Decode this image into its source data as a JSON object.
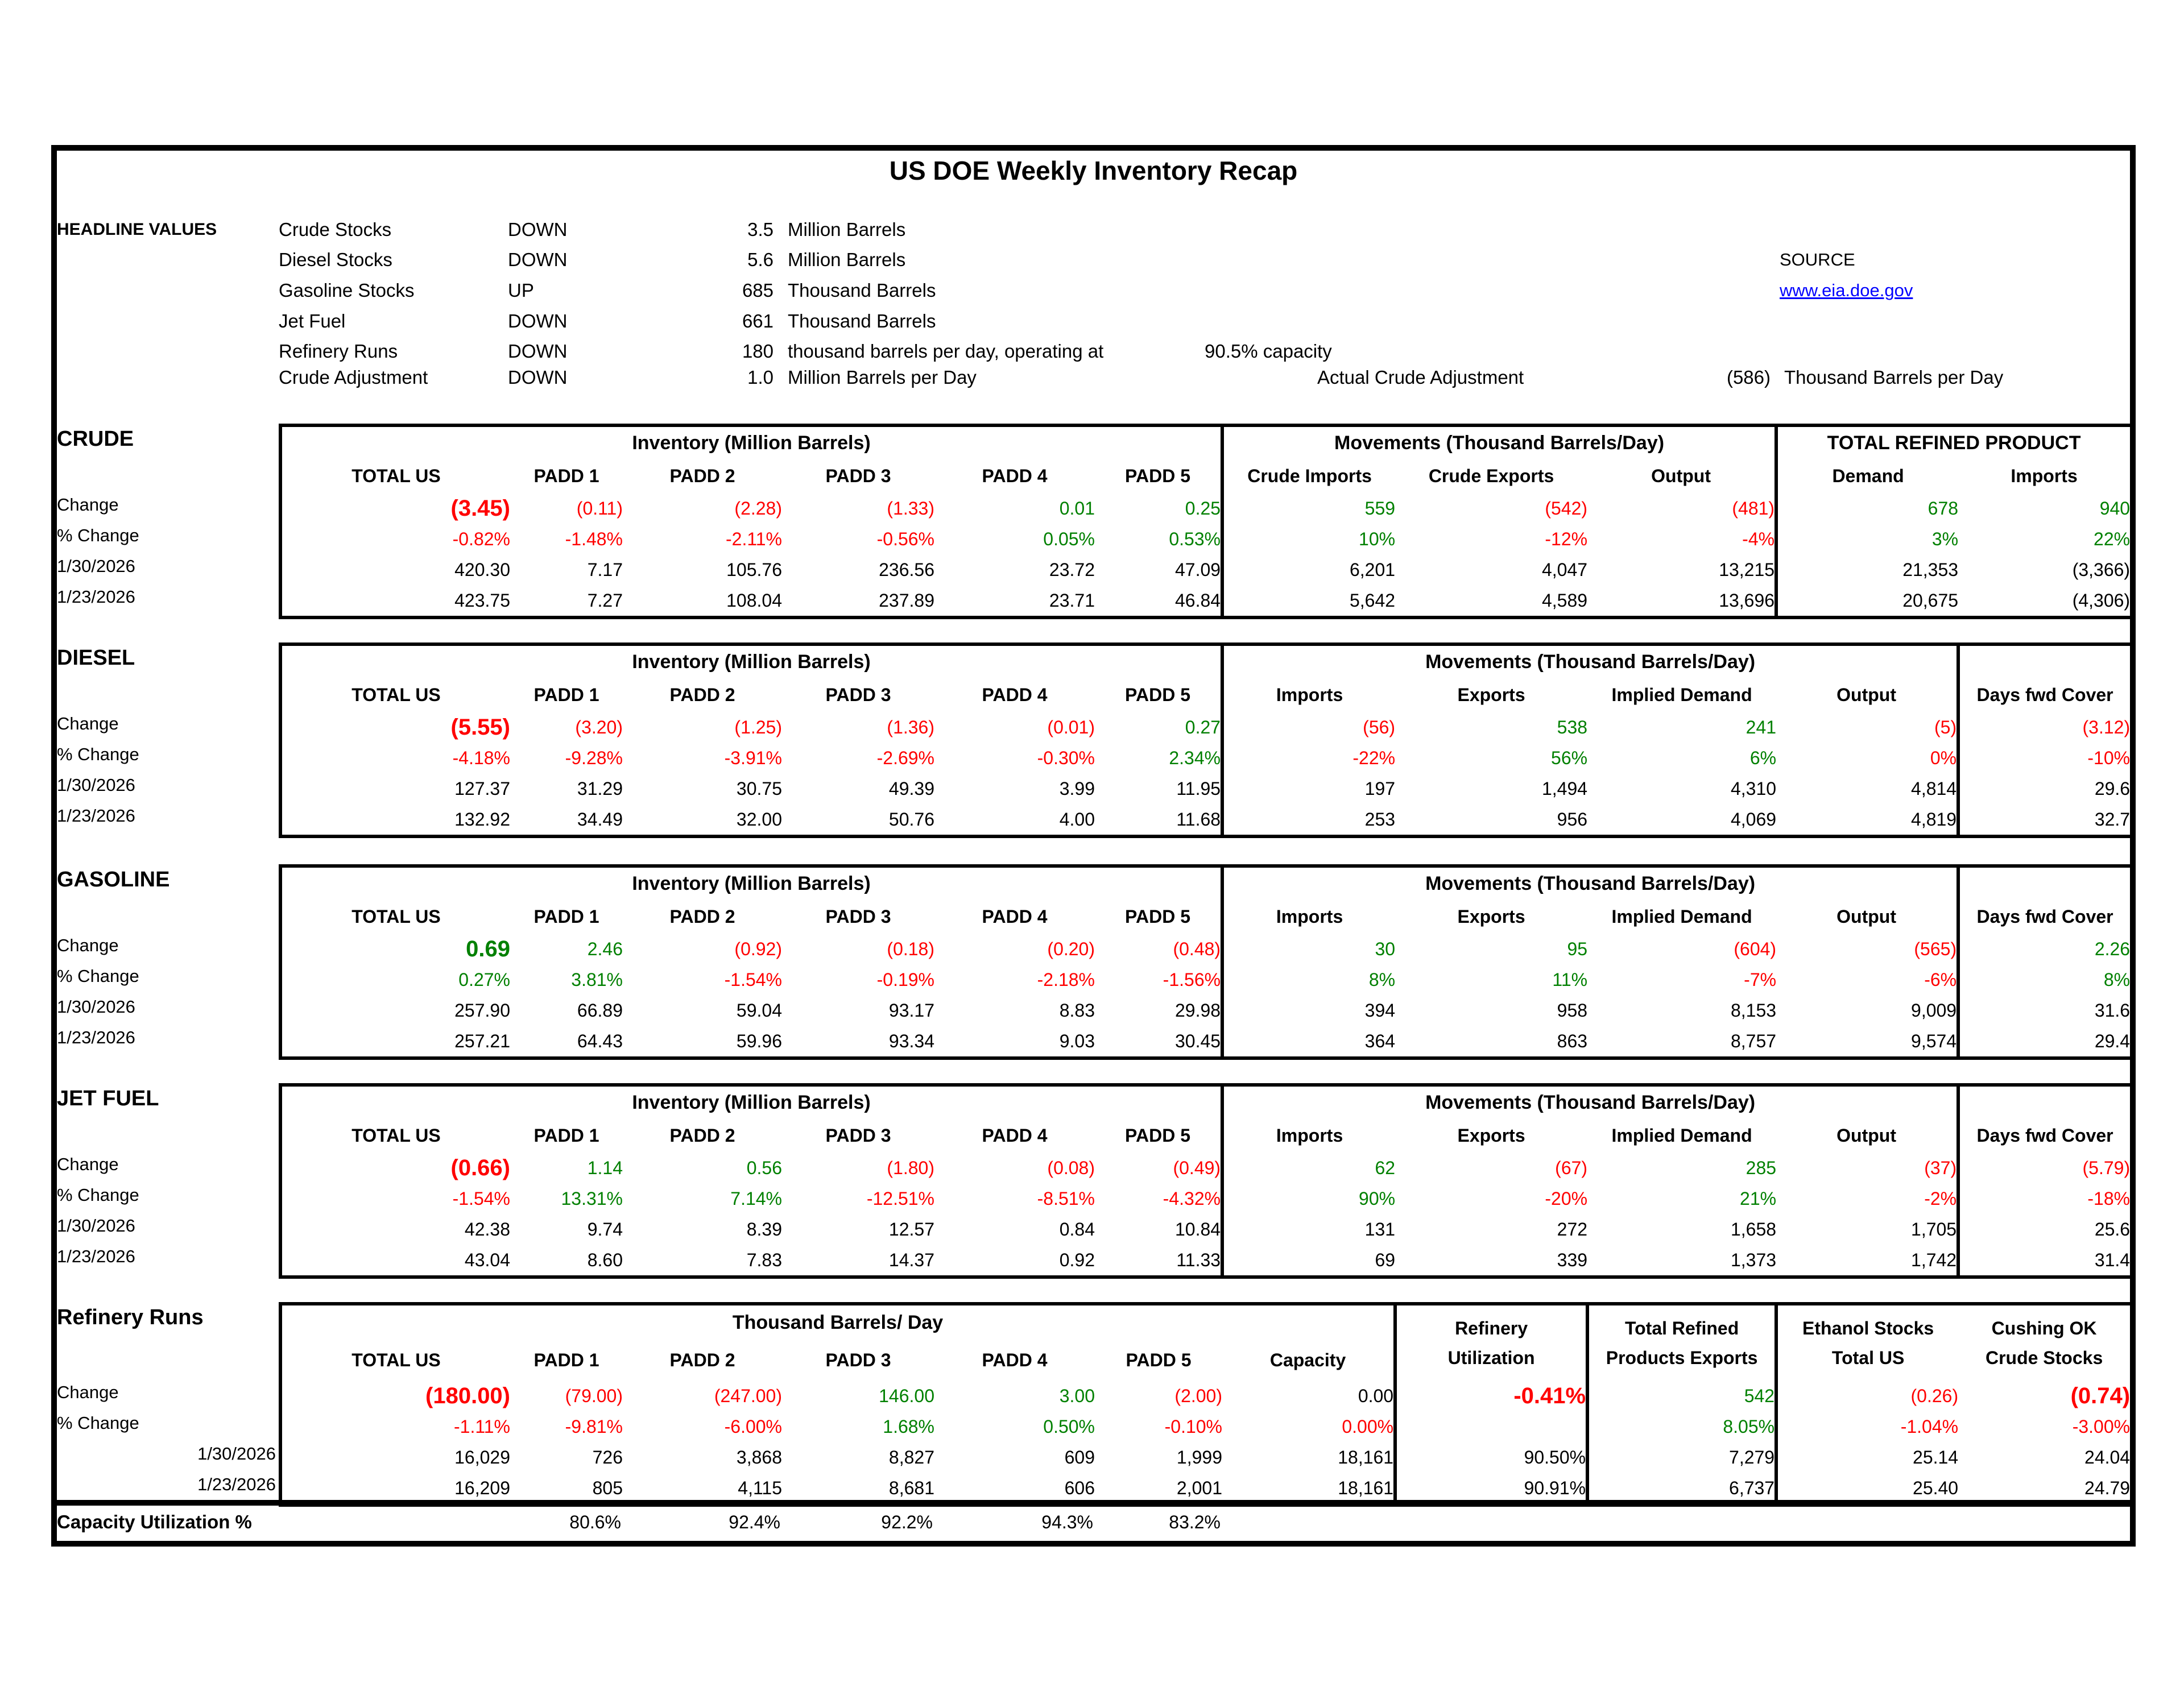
{
  "title": "US DOE Weekly Inventory Recap",
  "colors": {
    "negative": "#FF0000",
    "positive": "#008000",
    "link": "#0000FF"
  },
  "source": {
    "label": "SOURCE",
    "link": "www.eia.doe.gov"
  },
  "headline": {
    "label": "HEADLINE VALUES",
    "rows": [
      {
        "item": "Crude Stocks",
        "direction": "DOWN",
        "value": "3.5",
        "unit": "Million Barrels"
      },
      {
        "item": "Diesel Stocks",
        "direction": "DOWN",
        "value": "5.6",
        "unit": "Million Barrels"
      },
      {
        "item": "Gasoline Stocks",
        "direction": "UP",
        "value": "685",
        "unit": "Thousand Barrels"
      },
      {
        "item": "Jet Fuel",
        "direction": "DOWN",
        "value": "661",
        "unit": "Thousand Barrels"
      },
      {
        "item": "Refinery Runs",
        "direction": "DOWN",
        "value": "180",
        "unit": "thousand barrels per day, operating at",
        "capacity_note": "90.5% capacity"
      },
      {
        "item": "Crude Adjustment",
        "direction": "DOWN",
        "value": "1.0",
        "unit": "Million Barrels per Day",
        "actual_label": "Actual Crude Adjustment",
        "actual_value": "(586)",
        "actual_unit": "Thousand Barrels per Day"
      }
    ]
  },
  "sections": [
    {
      "name": "CRUDE",
      "group_titles": [
        "Inventory (Million Barrels)",
        "Movements (Thousand Barrels/Day)",
        "TOTAL REFINED PRODUCT"
      ],
      "col_headers": [
        "TOTAL US",
        "PADD 1",
        "PADD 2",
        "PADD 3",
        "PADD 4",
        "PADD 5",
        "Crude Imports",
        "Crude Exports",
        "Output",
        "Demand",
        "Imports"
      ],
      "row_labels": [
        "Change",
        "% Change",
        "1/30/2026",
        "1/23/2026"
      ],
      "dividers": [
        6,
        9
      ],
      "rows": [
        [
          [
            "(3.45)",
            "rb"
          ],
          [
            "(0.11)",
            "r"
          ],
          [
            "(2.28)",
            "r"
          ],
          [
            "(1.33)",
            "r"
          ],
          [
            "0.01",
            "g"
          ],
          [
            "0.25",
            "g"
          ],
          [
            "559",
            "g"
          ],
          [
            "(542)",
            "r"
          ],
          [
            "(481)",
            "r"
          ],
          [
            "678",
            "g"
          ],
          [
            "940",
            "g"
          ]
        ],
        [
          [
            "-0.82%",
            "r"
          ],
          [
            "-1.48%",
            "r"
          ],
          [
            "-2.11%",
            "r"
          ],
          [
            "-0.56%",
            "r"
          ],
          [
            "0.05%",
            "g"
          ],
          [
            "0.53%",
            "g"
          ],
          [
            "10%",
            "g"
          ],
          [
            "-12%",
            "r"
          ],
          [
            "-4%",
            "r"
          ],
          [
            "3%",
            "g"
          ],
          [
            "22%",
            "g"
          ]
        ],
        [
          [
            "420.30",
            "k"
          ],
          [
            "7.17",
            "k"
          ],
          [
            "105.76",
            "k"
          ],
          [
            "236.56",
            "k"
          ],
          [
            "23.72",
            "k"
          ],
          [
            "47.09",
            "k"
          ],
          [
            "6,201",
            "k"
          ],
          [
            "4,047",
            "k"
          ],
          [
            "13,215",
            "k"
          ],
          [
            "21,353",
            "k"
          ],
          [
            "(3,366)",
            "k"
          ]
        ],
        [
          [
            "423.75",
            "k"
          ],
          [
            "7.27",
            "k"
          ],
          [
            "108.04",
            "k"
          ],
          [
            "237.89",
            "k"
          ],
          [
            "23.71",
            "k"
          ],
          [
            "46.84",
            "k"
          ],
          [
            "5,642",
            "k"
          ],
          [
            "4,589",
            "k"
          ],
          [
            "13,696",
            "k"
          ],
          [
            "20,675",
            "k"
          ],
          [
            "(4,306)",
            "k"
          ]
        ]
      ]
    },
    {
      "name": "DIESEL",
      "group_titles": [
        "Inventory (Million Barrels)",
        "Movements (Thousand Barrels/Day)",
        ""
      ],
      "col_headers": [
        "TOTAL US",
        "PADD 1",
        "PADD 2",
        "PADD 3",
        "PADD 4",
        "PADD 5",
        "Imports",
        "Exports",
        "Implied Demand",
        "Output",
        "Days fwd Cover"
      ],
      "row_labels": [
        "Change",
        "% Change",
        "1/30/2026",
        "1/23/2026"
      ],
      "dividers": [
        6,
        10
      ],
      "rows": [
        [
          [
            "(5.55)",
            "rb"
          ],
          [
            "(3.20)",
            "r"
          ],
          [
            "(1.25)",
            "r"
          ],
          [
            "(1.36)",
            "r"
          ],
          [
            "(0.01)",
            "r"
          ],
          [
            "0.27",
            "g"
          ],
          [
            "(56)",
            "r"
          ],
          [
            "538",
            "g"
          ],
          [
            "241",
            "g"
          ],
          [
            "(5)",
            "r"
          ],
          [
            "(3.12)",
            "r"
          ]
        ],
        [
          [
            "-4.18%",
            "r"
          ],
          [
            "-9.28%",
            "r"
          ],
          [
            "-3.91%",
            "r"
          ],
          [
            "-2.69%",
            "r"
          ],
          [
            "-0.30%",
            "r"
          ],
          [
            "2.34%",
            "g"
          ],
          [
            "-22%",
            "r"
          ],
          [
            "56%",
            "g"
          ],
          [
            "6%",
            "g"
          ],
          [
            "0%",
            "r"
          ],
          [
            "-10%",
            "r"
          ]
        ],
        [
          [
            "127.37",
            "k"
          ],
          [
            "31.29",
            "k"
          ],
          [
            "30.75",
            "k"
          ],
          [
            "49.39",
            "k"
          ],
          [
            "3.99",
            "k"
          ],
          [
            "11.95",
            "k"
          ],
          [
            "197",
            "k"
          ],
          [
            "1,494",
            "k"
          ],
          [
            "4,310",
            "k"
          ],
          [
            "4,814",
            "k"
          ],
          [
            "29.6",
            "k"
          ]
        ],
        [
          [
            "132.92",
            "k"
          ],
          [
            "34.49",
            "k"
          ],
          [
            "32.00",
            "k"
          ],
          [
            "50.76",
            "k"
          ],
          [
            "4.00",
            "k"
          ],
          [
            "11.68",
            "k"
          ],
          [
            "253",
            "k"
          ],
          [
            "956",
            "k"
          ],
          [
            "4,069",
            "k"
          ],
          [
            "4,819",
            "k"
          ],
          [
            "32.7",
            "k"
          ]
        ]
      ]
    },
    {
      "name": "GASOLINE",
      "group_titles": [
        "Inventory (Million Barrels)",
        "Movements (Thousand Barrels/Day)",
        ""
      ],
      "col_headers": [
        "TOTAL US",
        "PADD 1",
        "PADD 2",
        "PADD 3",
        "PADD 4",
        "PADD 5",
        "Imports",
        "Exports",
        "Implied Demand",
        "Output",
        "Days fwd Cover"
      ],
      "row_labels": [
        "Change",
        "% Change",
        "1/30/2026",
        "1/23/2026"
      ],
      "dividers": [
        6,
        10
      ],
      "rows": [
        [
          [
            "0.69",
            "gb"
          ],
          [
            "2.46",
            "g"
          ],
          [
            "(0.92)",
            "r"
          ],
          [
            "(0.18)",
            "r"
          ],
          [
            "(0.20)",
            "r"
          ],
          [
            "(0.48)",
            "r"
          ],
          [
            "30",
            "g"
          ],
          [
            "95",
            "g"
          ],
          [
            "(604)",
            "r"
          ],
          [
            "(565)",
            "r"
          ],
          [
            "2.26",
            "g"
          ]
        ],
        [
          [
            "0.27%",
            "g"
          ],
          [
            "3.81%",
            "g"
          ],
          [
            "-1.54%",
            "r"
          ],
          [
            "-0.19%",
            "r"
          ],
          [
            "-2.18%",
            "r"
          ],
          [
            "-1.56%",
            "r"
          ],
          [
            "8%",
            "g"
          ],
          [
            "11%",
            "g"
          ],
          [
            "-7%",
            "r"
          ],
          [
            "-6%",
            "r"
          ],
          [
            "8%",
            "g"
          ]
        ],
        [
          [
            "257.90",
            "k"
          ],
          [
            "66.89",
            "k"
          ],
          [
            "59.04",
            "k"
          ],
          [
            "93.17",
            "k"
          ],
          [
            "8.83",
            "k"
          ],
          [
            "29.98",
            "k"
          ],
          [
            "394",
            "k"
          ],
          [
            "958",
            "k"
          ],
          [
            "8,153",
            "k"
          ],
          [
            "9,009",
            "k"
          ],
          [
            "31.6",
            "k"
          ]
        ],
        [
          [
            "257.21",
            "k"
          ],
          [
            "64.43",
            "k"
          ],
          [
            "59.96",
            "k"
          ],
          [
            "93.34",
            "k"
          ],
          [
            "9.03",
            "k"
          ],
          [
            "30.45",
            "k"
          ],
          [
            "364",
            "k"
          ],
          [
            "863",
            "k"
          ],
          [
            "8,757",
            "k"
          ],
          [
            "9,574",
            "k"
          ],
          [
            "29.4",
            "k"
          ]
        ]
      ]
    },
    {
      "name": "JET FUEL",
      "group_titles": [
        "Inventory (Million Barrels)",
        "Movements (Thousand Barrels/Day)",
        ""
      ],
      "col_headers": [
        "TOTAL US",
        "PADD 1",
        "PADD 2",
        "PADD 3",
        "PADD 4",
        "PADD 5",
        "Imports",
        "Exports",
        "Implied Demand",
        "Output",
        "Days fwd Cover"
      ],
      "row_labels": [
        "Change",
        "% Change",
        "1/30/2026",
        "1/23/2026"
      ],
      "dividers": [
        6,
        10
      ],
      "rows": [
        [
          [
            "(0.66)",
            "rb"
          ],
          [
            "1.14",
            "g"
          ],
          [
            "0.56",
            "g"
          ],
          [
            "(1.80)",
            "r"
          ],
          [
            "(0.08)",
            "r"
          ],
          [
            "(0.49)",
            "r"
          ],
          [
            "62",
            "g"
          ],
          [
            "(67)",
            "r"
          ],
          [
            "285",
            "g"
          ],
          [
            "(37)",
            "r"
          ],
          [
            "(5.79)",
            "r"
          ]
        ],
        [
          [
            "-1.54%",
            "r"
          ],
          [
            "13.31%",
            "g"
          ],
          [
            "7.14%",
            "g"
          ],
          [
            "-12.51%",
            "r"
          ],
          [
            "-8.51%",
            "r"
          ],
          [
            "-4.32%",
            "r"
          ],
          [
            "90%",
            "g"
          ],
          [
            "-20%",
            "r"
          ],
          [
            "21%",
            "g"
          ],
          [
            "-2%",
            "r"
          ],
          [
            "-18%",
            "r"
          ]
        ],
        [
          [
            "42.38",
            "k"
          ],
          [
            "9.74",
            "k"
          ],
          [
            "8.39",
            "k"
          ],
          [
            "12.57",
            "k"
          ],
          [
            "0.84",
            "k"
          ],
          [
            "10.84",
            "k"
          ],
          [
            "131",
            "k"
          ],
          [
            "272",
            "k"
          ],
          [
            "1,658",
            "k"
          ],
          [
            "1,705",
            "k"
          ],
          [
            "25.6",
            "k"
          ]
        ],
        [
          [
            "43.04",
            "k"
          ],
          [
            "8.60",
            "k"
          ],
          [
            "7.83",
            "k"
          ],
          [
            "14.37",
            "k"
          ],
          [
            "0.92",
            "k"
          ],
          [
            "11.33",
            "k"
          ],
          [
            "69",
            "k"
          ],
          [
            "339",
            "k"
          ],
          [
            "1,373",
            "k"
          ],
          [
            "1,742",
            "k"
          ],
          [
            "31.4",
            "k"
          ]
        ]
      ]
    },
    {
      "name": "Refinery Runs",
      "group_titles": [
        "Thousand Barrels/ Day"
      ],
      "stacked_headers": [
        [
          "Refinery",
          "Utilization"
        ],
        [
          "Total Refined",
          "Products Exports"
        ],
        [
          "Ethanol Stocks",
          "Total US"
        ],
        [
          "Cushing OK",
          "Crude Stocks"
        ]
      ],
      "col_headers": [
        "TOTAL US",
        "PADD 1",
        "PADD 2",
        "PADD 3",
        "PADD 4",
        "PADD 5",
        "Capacity"
      ],
      "row_labels": [
        "Change",
        "% Change",
        "1/30/2026",
        "1/23/2026"
      ],
      "dividers": [
        7,
        8,
        9
      ],
      "rows": [
        [
          [
            "(180.00)",
            "rb"
          ],
          [
            "(79.00)",
            "r"
          ],
          [
            "(247.00)",
            "r"
          ],
          [
            "146.00",
            "g"
          ],
          [
            "3.00",
            "g"
          ],
          [
            "(2.00)",
            "r"
          ],
          [
            "0.00",
            "k"
          ],
          [
            "-0.41%",
            "rb"
          ],
          [
            "542",
            "g"
          ],
          [
            "(0.26)",
            "r"
          ],
          [
            "(0.74)",
            "rb"
          ]
        ],
        [
          [
            "-1.11%",
            "r"
          ],
          [
            "-9.81%",
            "r"
          ],
          [
            "-6.00%",
            "r"
          ],
          [
            "1.68%",
            "g"
          ],
          [
            "0.50%",
            "g"
          ],
          [
            "-0.10%",
            "r"
          ],
          [
            "0.00%",
            "r"
          ],
          [
            "",
            ""
          ],
          [
            "8.05%",
            "g"
          ],
          [
            "-1.04%",
            "r"
          ],
          [
            "-3.00%",
            "r"
          ]
        ],
        [
          [
            "16,029",
            "k"
          ],
          [
            "726",
            "k"
          ],
          [
            "3,868",
            "k"
          ],
          [
            "8,827",
            "k"
          ],
          [
            "609",
            "k"
          ],
          [
            "1,999",
            "k"
          ],
          [
            "18,161",
            "k"
          ],
          [
            "90.50%",
            "k"
          ],
          [
            "7,279",
            "k"
          ],
          [
            "25.14",
            "k"
          ],
          [
            "24.04",
            "k"
          ]
        ],
        [
          [
            "16,209",
            "k"
          ],
          [
            "805",
            "k"
          ],
          [
            "4,115",
            "k"
          ],
          [
            "8,681",
            "k"
          ],
          [
            "606",
            "k"
          ],
          [
            "2,001",
            "k"
          ],
          [
            "18,161",
            "k"
          ],
          [
            "90.91%",
            "k"
          ],
          [
            "6,737",
            "k"
          ],
          [
            "25.40",
            "k"
          ],
          [
            "24.79",
            "k"
          ]
        ]
      ]
    }
  ],
  "capacity_row": {
    "label": "Capacity Utilization %",
    "values": [
      "80.6%",
      "92.4%",
      "92.2%",
      "94.3%",
      "83.2%"
    ]
  }
}
